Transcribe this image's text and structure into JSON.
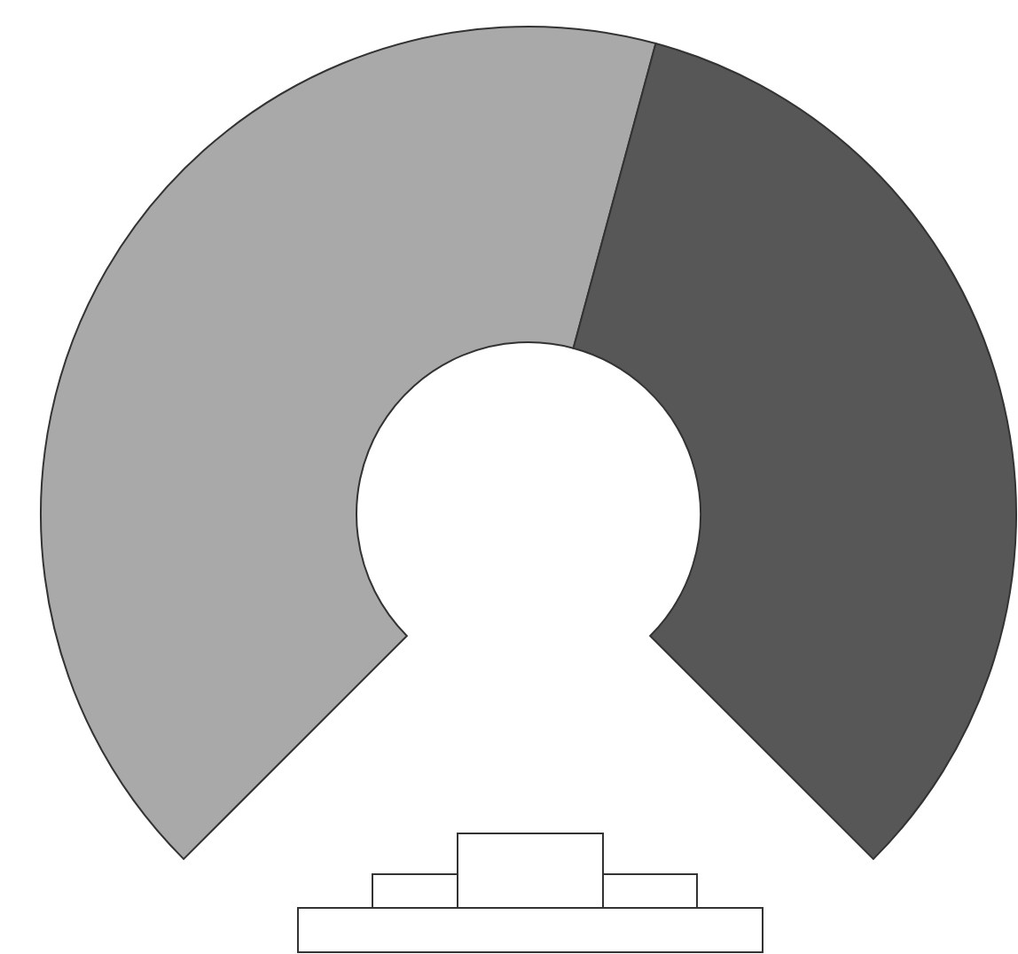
{
  "chart_data": {
    "type": "donut",
    "categories": [
      null,
      null
    ],
    "values": [
      55.6,
      44.4
    ],
    "colors": [
      "#a9a9a9",
      "#575757"
    ]
  }
}
